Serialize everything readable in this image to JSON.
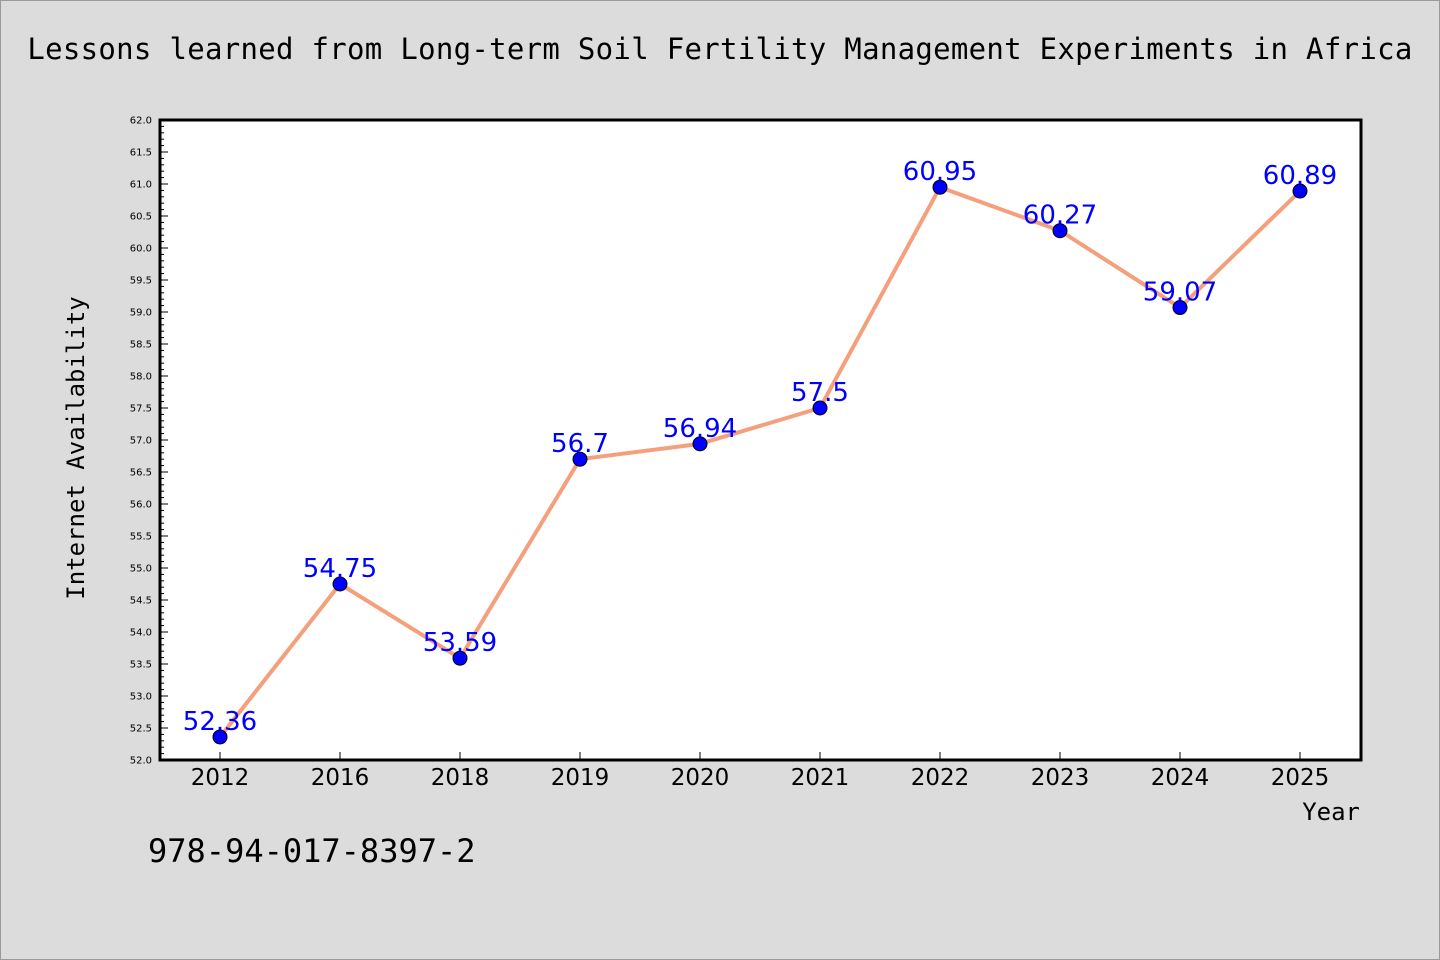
{
  "chart_data": {
    "type": "line",
    "title": "Lessons learned from Long-term Soil Fertility Management Experiments in Africa",
    "xlabel": "Year",
    "ylabel": "Internet Availability",
    "categories": [
      "2012",
      "2016",
      "2018",
      "2019",
      "2020",
      "2021",
      "2022",
      "2023",
      "2024",
      "2025"
    ],
    "series": [
      {
        "values": [
          52.36,
          54.75,
          53.59,
          56.7,
          56.94,
          57.5,
          60.95,
          60.27,
          59.07,
          60.89
        ],
        "data_labels": [
          "52.36",
          "54.75",
          "53.59",
          "56.7",
          "56.94",
          "57.5",
          "60.95",
          "60.27",
          "59.07",
          "60.89"
        ]
      }
    ],
    "ylim": [
      52.0,
      62.0
    ],
    "yticks": [
      "52.0",
      "52.5",
      "53.0",
      "53.5",
      "54.0",
      "54.5",
      "55.0",
      "55.5",
      "56.0",
      "56.5",
      "57.0",
      "57.5",
      "58.0",
      "58.5",
      "59.0",
      "59.5",
      "60.0",
      "60.5",
      "61.0",
      "61.5",
      "62.0"
    ],
    "grid": false,
    "line_color": "#f4a07c",
    "marker_color": "#0000ff",
    "label_color": "#0000ff",
    "background": "#dcdcdc",
    "plot_background": "#ffffff"
  },
  "footer": {
    "isbn": "978-94-017-8397-2"
  }
}
